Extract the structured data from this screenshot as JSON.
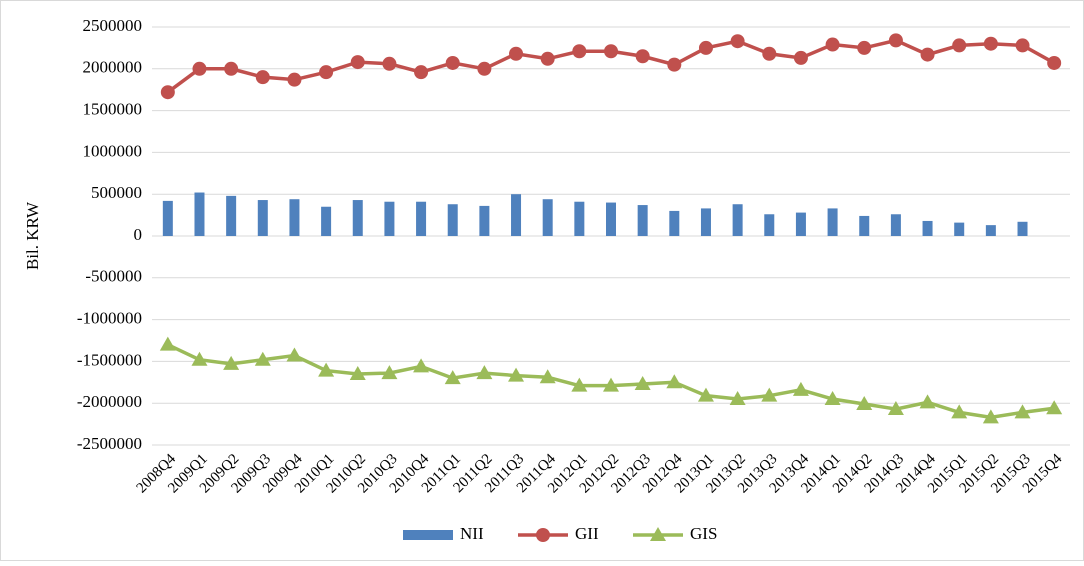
{
  "chart_data": {
    "type": "bar-line",
    "y_label": "Bil. KRW",
    "categories": [
      "2008Q4",
      "2009Q1",
      "2009Q2",
      "2009Q3",
      "2009Q4",
      "2010Q1",
      "2010Q2",
      "2010Q3",
      "2010Q4",
      "2011Q1",
      "2011Q2",
      "2011Q3",
      "2011Q4",
      "2012Q1",
      "2012Q2",
      "2012Q3",
      "2012Q4",
      "2013Q1",
      "2013Q2",
      "2013Q3",
      "2013Q4",
      "2014Q1",
      "2014Q2",
      "2014Q3",
      "2014Q4",
      "2015Q1",
      "2015Q2",
      "2015Q3",
      "2015Q4"
    ],
    "series": [
      {
        "name": "NII",
        "type": "bar",
        "color": "#4f81bd",
        "values": [
          420000,
          520000,
          480000,
          430000,
          440000,
          350000,
          430000,
          410000,
          410000,
          380000,
          360000,
          500000,
          440000,
          410000,
          400000,
          370000,
          300000,
          330000,
          380000,
          260000,
          280000,
          330000,
          240000,
          260000,
          180000,
          160000,
          130000,
          170000,
          null
        ]
      },
      {
        "name": "GII",
        "type": "line",
        "marker": "circle",
        "color": "#c0504d",
        "values": [
          1720000,
          2000000,
          2000000,
          1900000,
          1870000,
          1960000,
          2080000,
          2060000,
          1960000,
          2070000,
          2000000,
          2180000,
          2120000,
          2210000,
          2210000,
          2150000,
          2050000,
          2250000,
          2330000,
          2180000,
          2130000,
          2290000,
          2250000,
          2340000,
          2170000,
          2280000,
          2300000,
          2280000,
          2070000
        ]
      },
      {
        "name": "GIS",
        "type": "line",
        "marker": "triangle",
        "color": "#9bbb59",
        "values": [
          -1300000,
          -1480000,
          -1530000,
          -1480000,
          -1430000,
          -1610000,
          -1650000,
          -1640000,
          -1560000,
          -1700000,
          -1640000,
          -1670000,
          -1690000,
          -1790000,
          -1790000,
          -1770000,
          -1750000,
          -1910000,
          -1950000,
          -1910000,
          -1840000,
          -1950000,
          -2010000,
          -2070000,
          -1990000,
          -2110000,
          -2170000,
          -2110000,
          -2060000
        ]
      }
    ],
    "ylim": [
      -2500000,
      2500000
    ],
    "yticks": [
      -2500000,
      -2000000,
      -1500000,
      -1000000,
      -500000,
      0,
      500000,
      1000000,
      1500000,
      2000000,
      2500000
    ],
    "grid": true,
    "legend": "bottom"
  }
}
